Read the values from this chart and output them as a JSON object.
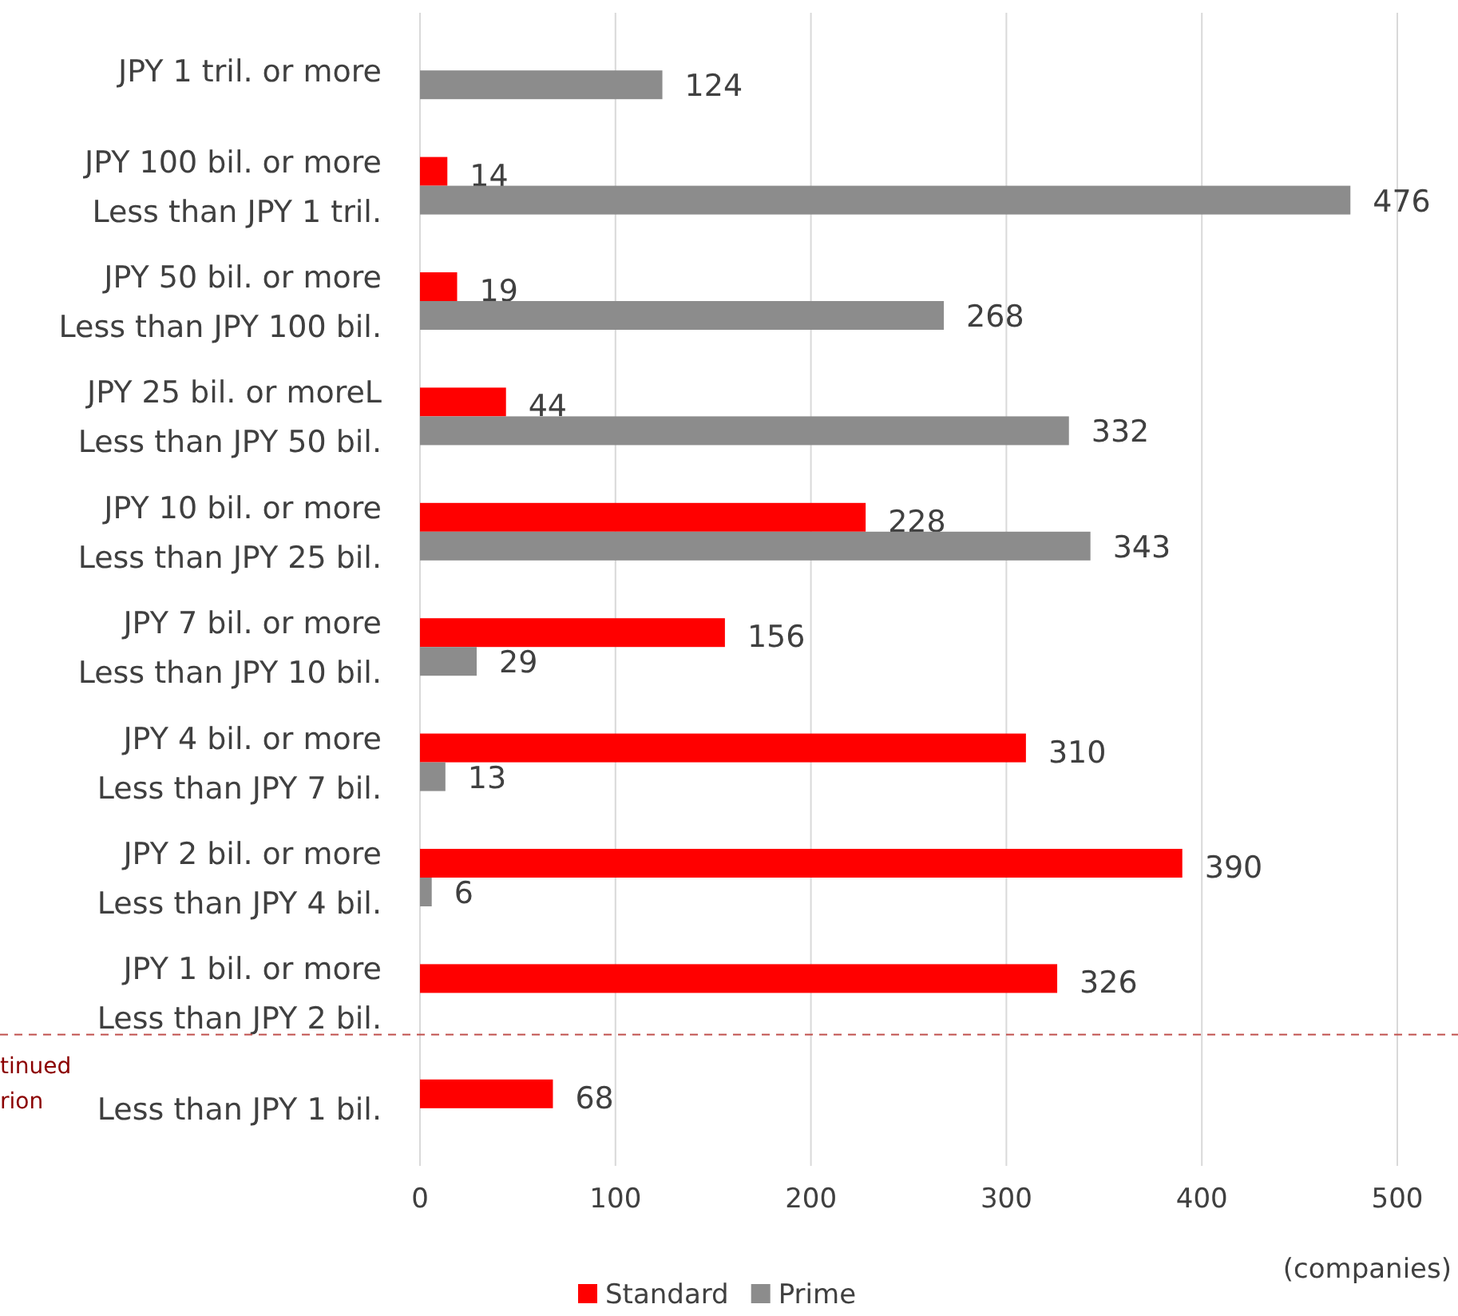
{
  "chart_data": {
    "type": "bar",
    "orientation": "horizontal",
    "categories": [
      "JPY 1 tril. or more",
      "JPY 100 bil. or more\nLess than JPY 1 tril.",
      "JPY 50 bil. or more\nLess than JPY 100 bil.",
      "JPY 25 bil. or moreL\nLess than JPY 50 bil.",
      "JPY 10 bil. or more\nLess than JPY 25 bil.",
      "JPY 7 bil. or more\nLess than JPY 10 bil.",
      "JPY 4 bil. or more\nLess than JPY 7 bil.",
      "JPY 2 bil. or more\nLess than JPY 4 bil.",
      "JPY 1 bil. or more\nLess than JPY 2 bil.",
      "Less than JPY 1 bil."
    ],
    "series": [
      {
        "name": "Standard",
        "color": "#ff0000",
        "values": [
          null,
          14,
          19,
          44,
          228,
          156,
          310,
          390,
          326,
          68
        ]
      },
      {
        "name": "Prime",
        "color": "#8c8c8c",
        "values": [
          124,
          476,
          268,
          332,
          343,
          29,
          13,
          6,
          null,
          null
        ]
      }
    ],
    "xlim": [
      0,
      500
    ],
    "xticks": [
      0,
      100,
      200,
      300,
      400,
      500
    ],
    "xlabel": "(companies)",
    "grid": "x",
    "legend": "bottom",
    "data_labels": true,
    "annotations": [
      "tinued",
      "rion"
    ]
  }
}
